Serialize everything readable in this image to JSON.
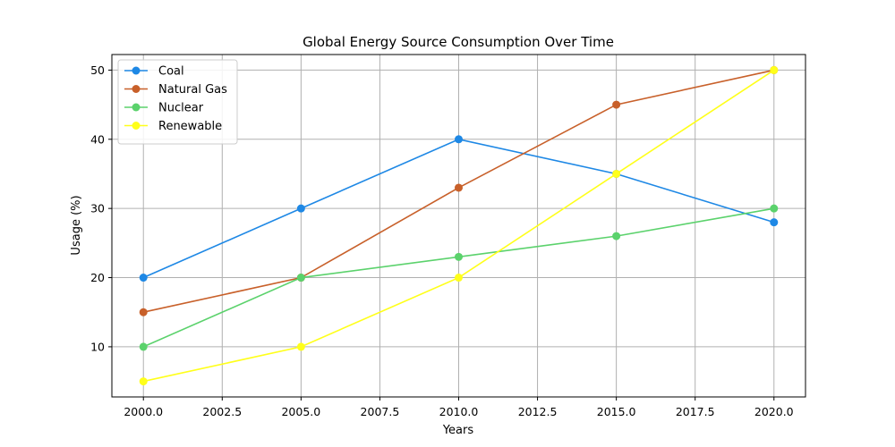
{
  "chart_data": {
    "type": "line",
    "title": "Global Energy Source Consumption Over Time",
    "xlabel": "Years",
    "ylabel": "Usage (%)",
    "x": [
      2000,
      2005,
      2010,
      2015,
      2020
    ],
    "xlim": [
      1999,
      2021
    ],
    "ylim": [
      2.75,
      52.25
    ],
    "x_ticks": [
      2000,
      2002.5,
      2005,
      2007.5,
      2010,
      2012.5,
      2015,
      2017.5,
      2020
    ],
    "x_tick_labels": [
      "2000.0",
      "2002.5",
      "2005.0",
      "2007.5",
      "2010.0",
      "2012.5",
      "2015.0",
      "2017.5",
      "2020.0"
    ],
    "y_ticks": [
      10,
      20,
      30,
      40,
      50
    ],
    "y_tick_labels": [
      "10",
      "20",
      "30",
      "40",
      "50"
    ],
    "grid": true,
    "legend_position": "top-left",
    "series": [
      {
        "name": "Coal",
        "color": "#1e88e5",
        "values": [
          20,
          30,
          40,
          35,
          28
        ]
      },
      {
        "name": "Natural Gas",
        "color": "#c8602a",
        "values": [
          15,
          20,
          33,
          45,
          50
        ]
      },
      {
        "name": "Nuclear",
        "color": "#5bd26c",
        "values": [
          10,
          20,
          23,
          26,
          30
        ]
      },
      {
        "name": "Renewable",
        "color": "#ffff1a",
        "values": [
          5,
          10,
          20,
          35,
          50
        ]
      }
    ]
  }
}
